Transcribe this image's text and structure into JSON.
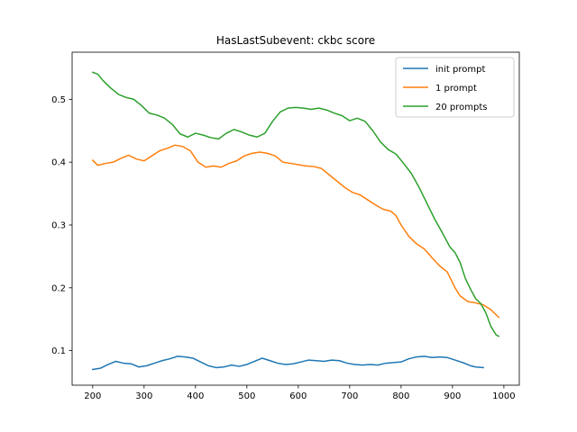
{
  "chart_data": {
    "type": "line",
    "title": "HasLastSubevent: ckbc score",
    "xlabel": "",
    "ylabel": "",
    "xlim": [
      160,
      1030
    ],
    "ylim": [
      0.045,
      0.575
    ],
    "xticks": [
      200,
      300,
      400,
      500,
      600,
      700,
      800,
      900,
      1000
    ],
    "yticks": [
      0.1,
      0.2,
      0.3,
      0.4,
      0.5
    ],
    "xtick_labels": [
      "200",
      "300",
      "400",
      "500",
      "600",
      "700",
      "800",
      "900",
      "1000"
    ],
    "ytick_labels": [
      "0.1",
      "0.2",
      "0.3",
      "0.4",
      "0.5"
    ],
    "grid": false,
    "legend_position": "top-right",
    "series": [
      {
        "name": "init prompt",
        "color": "#1f77b4",
        "points": [
          [
            200,
            0.07
          ],
          [
            215,
            0.072
          ],
          [
            230,
            0.078
          ],
          [
            245,
            0.083
          ],
          [
            260,
            0.08
          ],
          [
            275,
            0.079
          ],
          [
            290,
            0.074
          ],
          [
            305,
            0.076
          ],
          [
            320,
            0.08
          ],
          [
            335,
            0.084
          ],
          [
            350,
            0.087
          ],
          [
            365,
            0.091
          ],
          [
            380,
            0.09
          ],
          [
            395,
            0.088
          ],
          [
            410,
            0.082
          ],
          [
            425,
            0.076
          ],
          [
            440,
            0.073
          ],
          [
            455,
            0.074
          ],
          [
            470,
            0.077
          ],
          [
            485,
            0.075
          ],
          [
            500,
            0.078
          ],
          [
            515,
            0.083
          ],
          [
            530,
            0.088
          ],
          [
            545,
            0.084
          ],
          [
            560,
            0.08
          ],
          [
            575,
            0.078
          ],
          [
            590,
            0.079
          ],
          [
            605,
            0.082
          ],
          [
            620,
            0.085
          ],
          [
            635,
            0.084
          ],
          [
            650,
            0.083
          ],
          [
            665,
            0.085
          ],
          [
            680,
            0.084
          ],
          [
            695,
            0.08
          ],
          [
            710,
            0.078
          ],
          [
            725,
            0.077
          ],
          [
            740,
            0.078
          ],
          [
            755,
            0.077
          ],
          [
            770,
            0.08
          ],
          [
            785,
            0.081
          ],
          [
            800,
            0.082
          ],
          [
            815,
            0.087
          ],
          [
            830,
            0.09
          ],
          [
            845,
            0.091
          ],
          [
            860,
            0.089
          ],
          [
            875,
            0.09
          ],
          [
            890,
            0.089
          ],
          [
            905,
            0.085
          ],
          [
            920,
            0.081
          ],
          [
            935,
            0.076
          ],
          [
            945,
            0.074
          ],
          [
            960,
            0.073
          ]
        ]
      },
      {
        "name": "1 prompt",
        "color": "#ff7f0e",
        "points": [
          [
            200,
            0.403
          ],
          [
            210,
            0.395
          ],
          [
            225,
            0.398
          ],
          [
            240,
            0.4
          ],
          [
            255,
            0.406
          ],
          [
            270,
            0.411
          ],
          [
            285,
            0.405
          ],
          [
            300,
            0.402
          ],
          [
            315,
            0.41
          ],
          [
            330,
            0.418
          ],
          [
            345,
            0.422
          ],
          [
            360,
            0.427
          ],
          [
            375,
            0.425
          ],
          [
            390,
            0.418
          ],
          [
            405,
            0.4
          ],
          [
            420,
            0.392
          ],
          [
            435,
            0.394
          ],
          [
            450,
            0.392
          ],
          [
            465,
            0.398
          ],
          [
            480,
            0.402
          ],
          [
            495,
            0.41
          ],
          [
            510,
            0.414
          ],
          [
            525,
            0.416
          ],
          [
            540,
            0.414
          ],
          [
            555,
            0.41
          ],
          [
            570,
            0.4
          ],
          [
            585,
            0.398
          ],
          [
            600,
            0.396
          ],
          [
            615,
            0.394
          ],
          [
            630,
            0.393
          ],
          [
            645,
            0.39
          ],
          [
            660,
            0.38
          ],
          [
            675,
            0.37
          ],
          [
            690,
            0.36
          ],
          [
            705,
            0.352
          ],
          [
            720,
            0.348
          ],
          [
            735,
            0.34
          ],
          [
            750,
            0.332
          ],
          [
            765,
            0.325
          ],
          [
            780,
            0.322
          ],
          [
            790,
            0.315
          ],
          [
            800,
            0.3
          ],
          [
            815,
            0.282
          ],
          [
            830,
            0.27
          ],
          [
            845,
            0.262
          ],
          [
            860,
            0.248
          ],
          [
            875,
            0.235
          ],
          [
            890,
            0.225
          ],
          [
            905,
            0.2
          ],
          [
            915,
            0.187
          ],
          [
            930,
            0.178
          ],
          [
            945,
            0.176
          ],
          [
            960,
            0.173
          ],
          [
            975,
            0.165
          ],
          [
            990,
            0.153
          ]
        ]
      },
      {
        "name": "20 prompts",
        "color": "#2ca02c",
        "points": [
          [
            200,
            0.543
          ],
          [
            210,
            0.54
          ],
          [
            220,
            0.53
          ],
          [
            235,
            0.518
          ],
          [
            250,
            0.508
          ],
          [
            265,
            0.503
          ],
          [
            280,
            0.5
          ],
          [
            295,
            0.49
          ],
          [
            310,
            0.478
          ],
          [
            325,
            0.475
          ],
          [
            340,
            0.47
          ],
          [
            355,
            0.46
          ],
          [
            370,
            0.445
          ],
          [
            385,
            0.44
          ],
          [
            400,
            0.446
          ],
          [
            415,
            0.443
          ],
          [
            430,
            0.439
          ],
          [
            445,
            0.437
          ],
          [
            460,
            0.446
          ],
          [
            475,
            0.452
          ],
          [
            490,
            0.448
          ],
          [
            505,
            0.443
          ],
          [
            520,
            0.44
          ],
          [
            535,
            0.446
          ],
          [
            550,
            0.465
          ],
          [
            565,
            0.48
          ],
          [
            580,
            0.486
          ],
          [
            595,
            0.487
          ],
          [
            610,
            0.486
          ],
          [
            625,
            0.484
          ],
          [
            640,
            0.486
          ],
          [
            655,
            0.483
          ],
          [
            670,
            0.478
          ],
          [
            685,
            0.474
          ],
          [
            700,
            0.466
          ],
          [
            715,
            0.47
          ],
          [
            730,
            0.465
          ],
          [
            745,
            0.45
          ],
          [
            760,
            0.432
          ],
          [
            775,
            0.42
          ],
          [
            790,
            0.413
          ],
          [
            805,
            0.398
          ],
          [
            820,
            0.382
          ],
          [
            835,
            0.36
          ],
          [
            850,
            0.335
          ],
          [
            865,
            0.31
          ],
          [
            880,
            0.288
          ],
          [
            895,
            0.265
          ],
          [
            905,
            0.256
          ],
          [
            915,
            0.24
          ],
          [
            925,
            0.215
          ],
          [
            935,
            0.198
          ],
          [
            945,
            0.183
          ],
          [
            955,
            0.175
          ],
          [
            965,
            0.16
          ],
          [
            975,
            0.138
          ],
          [
            985,
            0.125
          ],
          [
            990,
            0.123
          ]
        ]
      }
    ]
  }
}
